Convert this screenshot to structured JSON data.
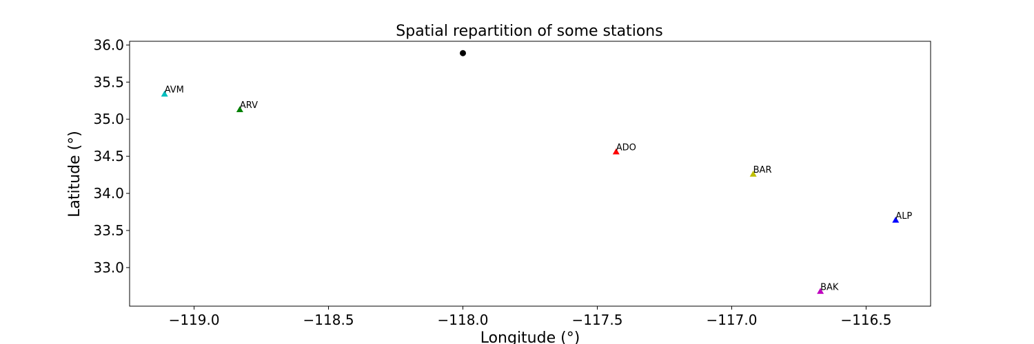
{
  "chart_data": {
    "type": "scatter",
    "title": "Spatial repartition of some stations",
    "xlabel": "Longitude (°)",
    "ylabel": "Latitude (°)",
    "xlim": [
      -119.24,
      -116.26
    ],
    "ylim": [
      32.48,
      36.05
    ],
    "xticks": [
      -119.0,
      -118.5,
      -118.0,
      -117.5,
      -117.0,
      -116.5
    ],
    "xtick_labels": [
      "−119.0",
      "−118.5",
      "−118.0",
      "−117.5",
      "−117.0",
      "−116.5"
    ],
    "yticks": [
      33.0,
      33.5,
      34.0,
      34.5,
      35.0,
      35.5,
      36.0
    ],
    "ytick_labels": [
      "33.0",
      "33.5",
      "34.0",
      "34.5",
      "35.0",
      "35.5",
      "36.0"
    ],
    "grid": false,
    "event": {
      "x": -118.0,
      "y": 35.89,
      "color": "#000000",
      "marker": "circle"
    },
    "stations": [
      {
        "label": "AVM",
        "x": -119.11,
        "y": 35.34,
        "color": "#00BFBF"
      },
      {
        "label": "ARV",
        "x": -118.83,
        "y": 35.13,
        "color": "#008000"
      },
      {
        "label": "ADO",
        "x": -117.43,
        "y": 34.56,
        "color": "#FF0000"
      },
      {
        "label": "BAR",
        "x": -116.92,
        "y": 34.26,
        "color": "#BFBF00"
      },
      {
        "label": "ALP",
        "x": -116.39,
        "y": 33.64,
        "color": "#0000FF"
      },
      {
        "label": "BAK",
        "x": -116.67,
        "y": 32.68,
        "color": "#BF00BF"
      }
    ]
  }
}
